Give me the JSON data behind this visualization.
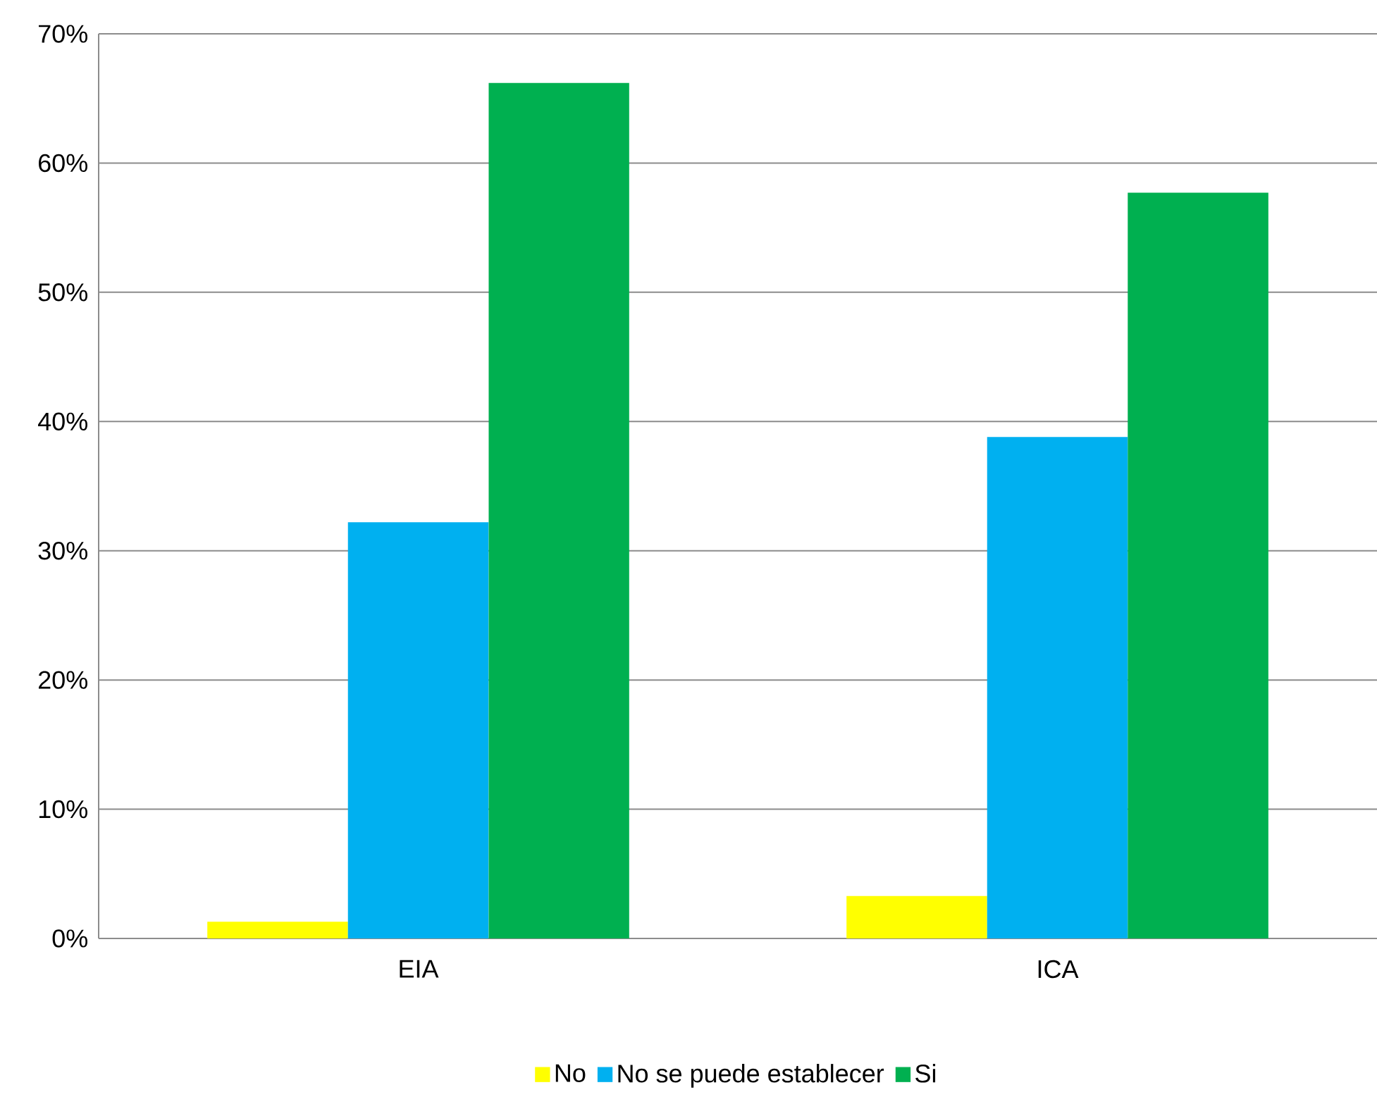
{
  "chart_data": {
    "type": "bar",
    "categories": [
      "EIA",
      "ICA"
    ],
    "series": [
      {
        "name": "No",
        "color": "#ffff00",
        "values": [
          1.3,
          3.3
        ]
      },
      {
        "name": "No se puede establecer",
        "color": "#00b0f0",
        "values": [
          32.2,
          38.8
        ]
      },
      {
        "name": "Si",
        "color": "#00b050",
        "values": [
          66.2,
          57.7
        ]
      }
    ],
    "ylim": [
      0,
      70
    ],
    "yticks": [
      {
        "value": 0,
        "label": "0%"
      },
      {
        "value": 10,
        "label": "10%"
      },
      {
        "value": 20,
        "label": "20%"
      },
      {
        "value": 30,
        "label": "30%"
      },
      {
        "value": 40,
        "label": "40%"
      },
      {
        "value": 50,
        "label": "50%"
      },
      {
        "value": 60,
        "label": "60%"
      },
      {
        "value": 70,
        "label": "70%"
      }
    ],
    "grid": "y",
    "legend": "bottom"
  }
}
